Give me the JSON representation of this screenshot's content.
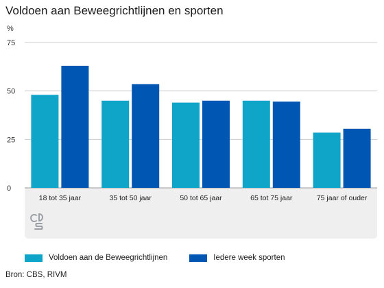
{
  "title": "Voldoen aan Beweegrichtlijnen en sporten",
  "unit_label": "%",
  "source": "Bron: CBS, RIVM",
  "logo": {
    "icon": "cbs-logo-icon"
  },
  "colors": {
    "series1": "#0ea5c9",
    "series2": "#0056b3",
    "category_band": "#efefef",
    "gridline": "#cccccc"
  },
  "legend": [
    {
      "label": "Voldoen aan de Beweegrichtlijnen",
      "color": "#0ea5c9"
    },
    {
      "label": "Iedere week sporten",
      "color": "#0056b3"
    }
  ],
  "chart_data": {
    "type": "bar",
    "title": "Voldoen aan Beweegrichtlijnen en sporten",
    "ylabel": "%",
    "xlabel": "",
    "ylim": [
      0,
      75
    ],
    "yticks": [
      0,
      25,
      50,
      75
    ],
    "grid": true,
    "legend_position": "bottom",
    "categories": [
      "18 tot 35 jaar",
      "35 tot 50 jaar",
      "50 tot 65 jaar",
      "65 tot 75 jaar",
      "75 jaar of ouder"
    ],
    "series": [
      {
        "name": "Voldoen aan de Beweegrichtlijnen",
        "values": [
          48,
          45,
          44,
          45,
          28.5
        ]
      },
      {
        "name": "Iedere week sporten",
        "values": [
          63,
          53.5,
          45,
          44.5,
          30.5
        ]
      }
    ]
  }
}
